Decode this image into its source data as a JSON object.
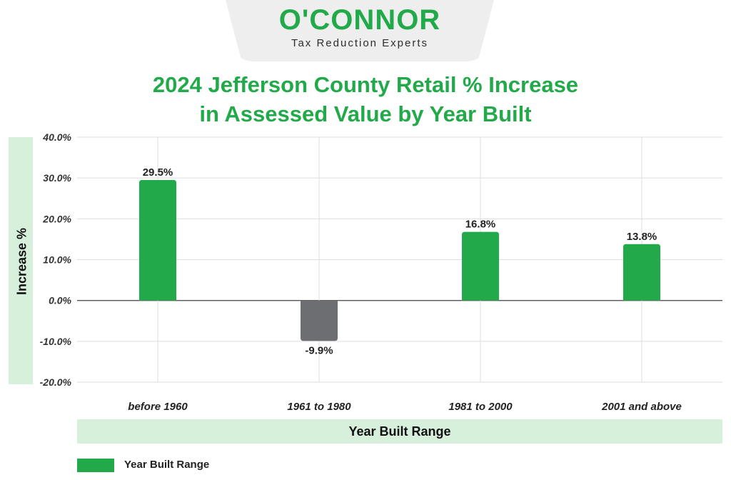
{
  "logo": {
    "name": "O'CONNOR",
    "tagline": "Tax Reduction Experts"
  },
  "chart_data": {
    "type": "bar",
    "title": "2024 Jefferson County Retail % Increase in Assessed Value by Year Built",
    "title_lines": [
      "2024 Jefferson County Retail % Increase",
      "in Assessed Value by Year Built"
    ],
    "xlabel": "Year Built Range",
    "ylabel": "Increase %",
    "categories": [
      "before 1960",
      "1961 to 1980",
      "1981 to 2000",
      "2001 and above"
    ],
    "series": [
      {
        "name": "Year Built Range",
        "values": [
          29.5,
          -9.9,
          16.8,
          13.8
        ]
      }
    ],
    "data_labels": [
      "29.5%",
      "-9.9%",
      "16.8%",
      "13.8%"
    ],
    "yticks": [
      40,
      30,
      20,
      10,
      0,
      -10,
      -20
    ],
    "ytick_labels": [
      "40.0%",
      "30.0%",
      "20.0%",
      "10.0%",
      "0.0%",
      "-10.0%",
      "-20.0%"
    ],
    "ylim": [
      -20,
      40
    ],
    "grid": true,
    "legend_position": "bottom-left",
    "colors": {
      "positive": "#22aa4a",
      "negative": "#6d6e71",
      "grid": "#dddddd",
      "title": "#22aa4a",
      "band": "#d6f0dc"
    }
  }
}
